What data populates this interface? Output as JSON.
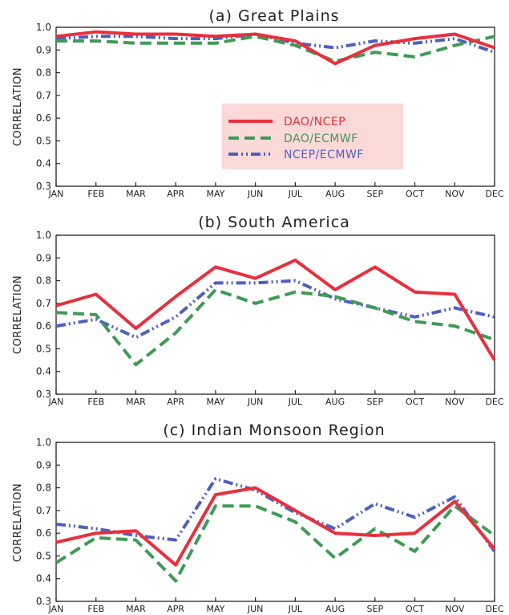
{
  "chart_data": [
    {
      "type": "line",
      "title": "(a) Great Plains",
      "xlabel": "",
      "ylabel": "CORRELATION",
      "categories": [
        "JAN",
        "FEB",
        "MAR",
        "APR",
        "MAY",
        "JUN",
        "JUL",
        "AUG",
        "SEP",
        "OCT",
        "NOV",
        "DEC"
      ],
      "ylim": [
        0.3,
        1.0
      ],
      "yticks": [
        "0.3",
        "0.4",
        "0.5",
        "0.6",
        "0.7",
        "0.8",
        "0.9",
        "1.0"
      ],
      "legend": "center",
      "series": [
        {
          "name": "DAO/NCEP",
          "color": "#e8303c",
          "dash": "solid",
          "values": [
            0.96,
            0.98,
            0.97,
            0.97,
            0.96,
            0.97,
            0.94,
            0.84,
            0.92,
            0.95,
            0.97,
            0.91
          ]
        },
        {
          "name": "DAO/ECMWF",
          "color": "#3f9a55",
          "dash": "dashed",
          "values": [
            0.94,
            0.94,
            0.93,
            0.93,
            0.93,
            0.96,
            0.92,
            0.85,
            0.89,
            0.87,
            0.92,
            0.96
          ]
        },
        {
          "name": "NCEP/ECMWF",
          "color": "#4f5fc0",
          "dash": "dash-dot",
          "values": [
            0.95,
            0.96,
            0.96,
            0.95,
            0.95,
            0.97,
            0.93,
            0.91,
            0.94,
            0.93,
            0.95,
            0.89
          ]
        }
      ]
    },
    {
      "type": "line",
      "title": "(b) South America",
      "xlabel": "",
      "ylabel": "CORRELATION",
      "categories": [
        "JAN",
        "FEB",
        "MAR",
        "APR",
        "MAY",
        "JUN",
        "JUL",
        "AUG",
        "SEP",
        "OCT",
        "NOV",
        "DEC"
      ],
      "ylim": [
        0.3,
        1.0
      ],
      "yticks": [
        "0.3",
        "0.4",
        "0.5",
        "0.6",
        "0.7",
        "0.8",
        "0.9",
        "1.0"
      ],
      "series": [
        {
          "name": "DAO/NCEP",
          "color": "#e8303c",
          "dash": "solid",
          "values": [
            0.69,
            0.74,
            0.59,
            0.73,
            0.86,
            0.81,
            0.89,
            0.76,
            0.86,
            0.75,
            0.74,
            0.45
          ]
        },
        {
          "name": "DAO/ECMWF",
          "color": "#3f9a55",
          "dash": "dashed",
          "values": [
            0.66,
            0.65,
            0.43,
            0.57,
            0.76,
            0.7,
            0.75,
            0.73,
            0.68,
            0.62,
            0.6,
            0.54
          ]
        },
        {
          "name": "NCEP/ECMWF",
          "color": "#4f5fc0",
          "dash": "dash-dot",
          "values": [
            0.6,
            0.63,
            0.55,
            0.64,
            0.79,
            0.79,
            0.8,
            0.72,
            0.68,
            0.64,
            0.68,
            0.64
          ]
        }
      ]
    },
    {
      "type": "line",
      "title": "(c) Indian Monsoon Region",
      "xlabel": "",
      "ylabel": "CORRELATION",
      "categories": [
        "JAN",
        "FEB",
        "MAR",
        "APR",
        "MAY",
        "JUN",
        "JUL",
        "AUG",
        "SEP",
        "OCT",
        "NOV",
        "DEC"
      ],
      "ylim": [
        0.3,
        1.0
      ],
      "yticks": [
        "0.3",
        "0.4",
        "0.5",
        "0.6",
        "0.7",
        "0.8",
        "0.9",
        "1.0"
      ],
      "series": [
        {
          "name": "DAO/NCEP",
          "color": "#e8303c",
          "dash": "solid",
          "values": [
            0.56,
            0.6,
            0.61,
            0.46,
            0.77,
            0.8,
            0.7,
            0.6,
            0.59,
            0.6,
            0.74,
            0.53
          ]
        },
        {
          "name": "DAO/ECMWF",
          "color": "#3f9a55",
          "dash": "dashed",
          "values": [
            0.47,
            0.58,
            0.57,
            0.39,
            0.72,
            0.72,
            0.65,
            0.49,
            0.62,
            0.52,
            0.72,
            0.59
          ]
        },
        {
          "name": "NCEP/ECMWF",
          "color": "#4f5fc0",
          "dash": "dash-dot",
          "values": [
            0.64,
            0.62,
            0.59,
            0.57,
            0.84,
            0.79,
            0.69,
            0.62,
            0.73,
            0.67,
            0.76,
            0.52
          ]
        }
      ]
    }
  ]
}
